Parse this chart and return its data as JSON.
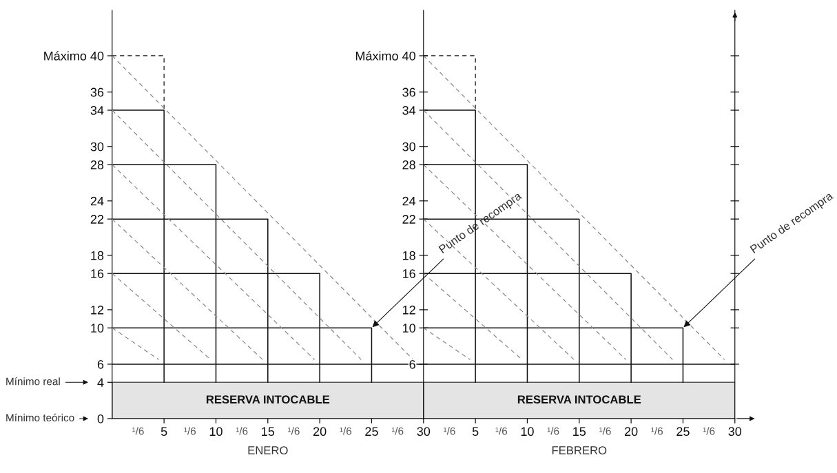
{
  "chart_data": [
    {
      "type": "line",
      "xlabel": "ENERO",
      "xlim": [
        0,
        30
      ],
      "ylim": [
        0,
        45
      ],
      "xticks": [
        5,
        10,
        15,
        20,
        25,
        30
      ],
      "yticks": [
        0,
        4,
        6,
        10,
        12,
        16,
        18,
        22,
        24,
        28,
        30,
        34,
        36,
        {
          "value": 40,
          "label": "Máximo 40"
        }
      ],
      "series": [
        {
          "color": "#111111",
          "x": [
            0,
            5,
            5
          ],
          "values": [
            40,
            40,
            34
          ],
          "line_style": "dashed"
        },
        {
          "color": "#111111",
          "x": [
            0,
            5,
            5
          ],
          "values": [
            34,
            34,
            4
          ]
        },
        {
          "color": "#111111",
          "x": [
            0,
            10,
            10
          ],
          "values": [
            28,
            28,
            4
          ]
        },
        {
          "color": "#111111",
          "x": [
            0,
            15,
            15
          ],
          "values": [
            22,
            22,
            4
          ]
        },
        {
          "color": "#111111",
          "x": [
            0,
            20,
            20
          ],
          "values": [
            16,
            16,
            4
          ]
        },
        {
          "color": "#111111",
          "x": [
            0,
            25,
            25
          ],
          "values": [
            10,
            10,
            4
          ]
        },
        {
          "color": "#8a8a8a",
          "x": [
            0,
            29
          ],
          "values": [
            40,
            6.5
          ],
          "line_style": "dashed"
        },
        {
          "color": "#8a8a8a",
          "x": [
            0,
            24
          ],
          "values": [
            34,
            6.5
          ],
          "line_style": "dashed"
        },
        {
          "color": "#8a8a8a",
          "x": [
            0,
            19.5
          ],
          "values": [
            28,
            6.5
          ],
          "line_style": "dashed"
        },
        {
          "color": "#8a8a8a",
          "x": [
            0,
            14.5
          ],
          "values": [
            22,
            6.5
          ],
          "line_style": "dashed"
        },
        {
          "color": "#8a8a8a",
          "x": [
            0,
            9.5
          ],
          "values": [
            16,
            6.5
          ],
          "line_style": "dashed"
        },
        {
          "color": "#8a8a8a",
          "x": [
            0,
            4.5
          ],
          "values": [
            10,
            6.5
          ],
          "line_style": "dashed"
        }
      ],
      "ref_lines": [
        {
          "axis": "y",
          "value": 6,
          "color": "#111111"
        }
      ],
      "bands": [
        {
          "axis": "y",
          "from": 0,
          "to": 4,
          "label": "RESERVA INTOCABLE",
          "color": "#e4e4e4"
        }
      ],
      "annotations": [
        "¹/6",
        "¹/6",
        "¹/6",
        "¹/6",
        "¹/6",
        "¹/6",
        "Mínimo real",
        "Mínimo teórico",
        {
          "text": "Punto de recompra",
          "x": 25,
          "y": 10
        }
      ]
    },
    {
      "type": "line",
      "xlabel": "FEBRERO",
      "xlim": [
        0,
        30
      ],
      "ylim": [
        0,
        45
      ],
      "xticks": [
        5,
        10,
        15,
        20,
        25,
        30
      ],
      "yticks": [
        6,
        10,
        12,
        16,
        18,
        22,
        24,
        28,
        30,
        34,
        36,
        {
          "value": 40,
          "label": "Máximo 40"
        }
      ],
      "series": [
        {
          "color": "#111111",
          "x": [
            0,
            5,
            5
          ],
          "values": [
            40,
            40,
            34
          ],
          "line_style": "dashed"
        },
        {
          "color": "#111111",
          "x": [
            0,
            5,
            5
          ],
          "values": [
            34,
            34,
            4
          ]
        },
        {
          "color": "#111111",
          "x": [
            0,
            10,
            10
          ],
          "values": [
            28,
            28,
            4
          ]
        },
        {
          "color": "#111111",
          "x": [
            0,
            15,
            15
          ],
          "values": [
            22,
            22,
            4
          ]
        },
        {
          "color": "#111111",
          "x": [
            0,
            20,
            20
          ],
          "values": [
            16,
            16,
            4
          ]
        },
        {
          "color": "#111111",
          "x": [
            0,
            25,
            25
          ],
          "values": [
            10,
            10,
            4
          ]
        },
        {
          "color": "#8a8a8a",
          "x": [
            0,
            29
          ],
          "values": [
            40,
            6.5
          ],
          "line_style": "dashed"
        },
        {
          "color": "#8a8a8a",
          "x": [
            0,
            24
          ],
          "values": [
            34,
            6.5
          ],
          "line_style": "dashed"
        },
        {
          "color": "#8a8a8a",
          "x": [
            0,
            19.5
          ],
          "values": [
            28,
            6.5
          ],
          "line_style": "dashed"
        },
        {
          "color": "#8a8a8a",
          "x": [
            0,
            14.5
          ],
          "values": [
            22,
            6.5
          ],
          "line_style": "dashed"
        },
        {
          "color": "#8a8a8a",
          "x": [
            0,
            9.5
          ],
          "values": [
            16,
            6.5
          ],
          "line_style": "dashed"
        },
        {
          "color": "#8a8a8a",
          "x": [
            0,
            4.5
          ],
          "values": [
            10,
            6.5
          ],
          "line_style": "dashed"
        }
      ],
      "ref_lines": [
        {
          "axis": "y",
          "value": 6,
          "color": "#111111"
        }
      ],
      "bands": [
        {
          "axis": "y",
          "from": 0,
          "to": 4,
          "label": "RESERVA INTOCABLE",
          "color": "#e4e4e4"
        }
      ],
      "annotations": [
        "¹/6",
        "¹/6",
        "¹/6",
        "¹/6",
        "¹/6",
        "¹/6",
        {
          "text": "Punto de recompra",
          "x": 25,
          "y": 10
        }
      ]
    }
  ]
}
